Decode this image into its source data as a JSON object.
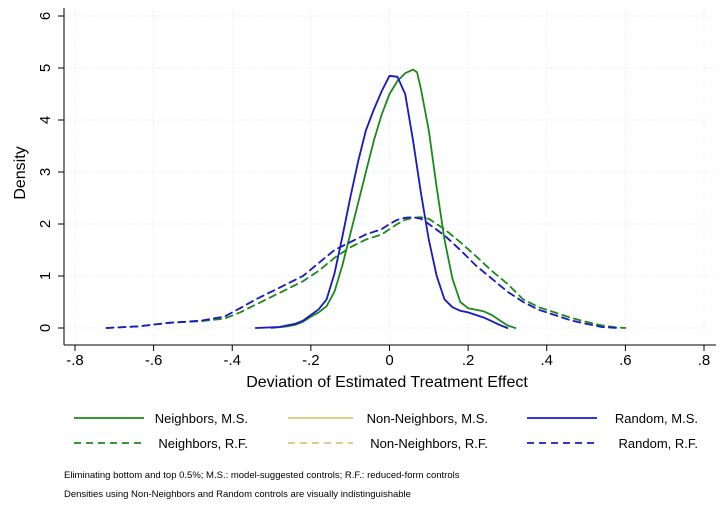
{
  "chart_data": {
    "type": "line",
    "xlabel": "Deviation of Estimated Treatment Effect",
    "ylabel": "Density",
    "xlim": [
      -0.8,
      0.8
    ],
    "ylim": [
      0,
      6
    ],
    "xticks": [
      -0.8,
      -0.6,
      -0.4,
      -0.2,
      0,
      0.2,
      0.4,
      0.6,
      0.8
    ],
    "xtick_labels": [
      "-.8",
      "-.6",
      "-.4",
      "-.2",
      "0",
      ".2",
      ".4",
      ".6",
      ".8"
    ],
    "yticks": [
      0,
      1,
      2,
      3,
      4,
      5,
      6
    ],
    "ytick_labels": [
      "0",
      "1",
      "2",
      "3",
      "4",
      "5",
      "6"
    ],
    "grid": true,
    "legend_position": "bottom",
    "series": [
      {
        "name": "Neighbors, M.S.",
        "color": "#1a8a1a",
        "dash": "solid",
        "x": [
          -0.3,
          -0.26,
          -0.24,
          -0.22,
          -0.2,
          -0.18,
          -0.16,
          -0.14,
          -0.12,
          -0.1,
          -0.08,
          -0.06,
          -0.04,
          -0.02,
          0.0,
          0.02,
          0.04,
          0.06,
          0.07,
          0.08,
          0.1,
          0.12,
          0.14,
          0.16,
          0.18,
          0.2,
          0.22,
          0.24,
          0.26,
          0.28,
          0.3,
          0.32
        ],
        "y": [
          0.0,
          0.03,
          0.06,
          0.12,
          0.22,
          0.3,
          0.42,
          0.7,
          1.2,
          1.8,
          2.4,
          3.0,
          3.6,
          4.1,
          4.5,
          4.75,
          4.9,
          4.97,
          4.92,
          4.6,
          3.8,
          2.7,
          1.7,
          0.95,
          0.5,
          0.38,
          0.35,
          0.32,
          0.25,
          0.15,
          0.05,
          0.0
        ]
      },
      {
        "name": "Non-Neighbors, M.S.",
        "color": "#d8c878",
        "dash": "solid",
        "x": [
          -0.34,
          -0.28,
          -0.24,
          -0.22,
          -0.2,
          -0.18,
          -0.16,
          -0.14,
          -0.12,
          -0.1,
          -0.08,
          -0.06,
          -0.04,
          -0.02,
          0.0,
          0.02,
          0.04,
          0.06,
          0.08,
          0.1,
          0.12,
          0.14,
          0.16,
          0.18,
          0.2,
          0.22,
          0.24,
          0.26,
          0.28,
          0.3
        ],
        "y": [
          0.0,
          0.02,
          0.08,
          0.14,
          0.25,
          0.36,
          0.55,
          1.05,
          1.75,
          2.5,
          3.2,
          3.8,
          4.2,
          4.55,
          4.85,
          4.83,
          4.5,
          3.6,
          2.6,
          1.7,
          1.0,
          0.55,
          0.4,
          0.33,
          0.3,
          0.25,
          0.2,
          0.13,
          0.06,
          0.0
        ]
      },
      {
        "name": "Random, M.S.",
        "color": "#1a1acc",
        "dash": "solid",
        "x": [
          -0.34,
          -0.28,
          -0.24,
          -0.22,
          -0.2,
          -0.18,
          -0.16,
          -0.14,
          -0.12,
          -0.1,
          -0.08,
          -0.06,
          -0.04,
          -0.02,
          0.0,
          0.02,
          0.04,
          0.06,
          0.08,
          0.1,
          0.12,
          0.14,
          0.16,
          0.18,
          0.2,
          0.22,
          0.24,
          0.26,
          0.28,
          0.3
        ],
        "y": [
          0.0,
          0.02,
          0.08,
          0.14,
          0.25,
          0.36,
          0.55,
          1.05,
          1.75,
          2.5,
          3.2,
          3.8,
          4.2,
          4.55,
          4.85,
          4.83,
          4.5,
          3.6,
          2.6,
          1.7,
          1.0,
          0.55,
          0.4,
          0.33,
          0.3,
          0.25,
          0.2,
          0.13,
          0.06,
          0.0
        ]
      },
      {
        "name": "Neighbors, R.F.",
        "color": "#1a8a1a",
        "dash": "dashed",
        "x": [
          -0.72,
          -0.64,
          -0.56,
          -0.48,
          -0.42,
          -0.38,
          -0.34,
          -0.3,
          -0.26,
          -0.22,
          -0.18,
          -0.14,
          -0.1,
          -0.06,
          -0.02,
          0.0,
          0.02,
          0.04,
          0.06,
          0.08,
          0.1,
          0.14,
          0.18,
          0.22,
          0.26,
          0.3,
          0.34,
          0.38,
          0.42,
          0.46,
          0.5,
          0.54,
          0.58,
          0.6
        ],
        "y": [
          0.0,
          0.03,
          0.1,
          0.13,
          0.18,
          0.3,
          0.45,
          0.6,
          0.75,
          0.9,
          1.1,
          1.35,
          1.55,
          1.7,
          1.8,
          1.9,
          2.0,
          2.08,
          2.12,
          2.13,
          2.1,
          1.9,
          1.65,
          1.38,
          1.1,
          0.85,
          0.55,
          0.4,
          0.3,
          0.2,
          0.12,
          0.05,
          0.01,
          0.0
        ]
      },
      {
        "name": "Non-Neighbors, R.F.",
        "color": "#d8c878",
        "dash": "dashed",
        "x": [
          -0.72,
          -0.64,
          -0.56,
          -0.48,
          -0.42,
          -0.38,
          -0.34,
          -0.3,
          -0.26,
          -0.22,
          -0.18,
          -0.14,
          -0.1,
          -0.06,
          -0.02,
          0.0,
          0.02,
          0.04,
          0.06,
          0.08,
          0.1,
          0.14,
          0.18,
          0.22,
          0.26,
          0.3,
          0.34,
          0.38,
          0.42,
          0.46,
          0.5,
          0.54,
          0.58
        ],
        "y": [
          0.0,
          0.03,
          0.1,
          0.14,
          0.22,
          0.38,
          0.55,
          0.7,
          0.85,
          1.0,
          1.25,
          1.5,
          1.65,
          1.8,
          1.9,
          2.0,
          2.08,
          2.12,
          2.13,
          2.1,
          2.0,
          1.78,
          1.5,
          1.2,
          0.95,
          0.7,
          0.5,
          0.35,
          0.25,
          0.15,
          0.08,
          0.02,
          0.0
        ]
      },
      {
        "name": "Random, R.F.",
        "color": "#1a1acc",
        "dash": "dashed",
        "x": [
          -0.72,
          -0.64,
          -0.56,
          -0.48,
          -0.42,
          -0.38,
          -0.34,
          -0.3,
          -0.26,
          -0.22,
          -0.18,
          -0.14,
          -0.1,
          -0.06,
          -0.02,
          0.0,
          0.02,
          0.04,
          0.06,
          0.08,
          0.1,
          0.14,
          0.18,
          0.22,
          0.26,
          0.3,
          0.34,
          0.38,
          0.42,
          0.46,
          0.5,
          0.54,
          0.58
        ],
        "y": [
          0.0,
          0.03,
          0.1,
          0.14,
          0.22,
          0.38,
          0.55,
          0.7,
          0.85,
          1.0,
          1.25,
          1.5,
          1.65,
          1.8,
          1.9,
          2.0,
          2.08,
          2.12,
          2.13,
          2.1,
          2.0,
          1.78,
          1.5,
          1.2,
          0.95,
          0.7,
          0.5,
          0.35,
          0.25,
          0.15,
          0.08,
          0.02,
          0.0
        ]
      }
    ]
  },
  "notes": {
    "line1": "Eliminating bottom and top 0.5%; M.S.: model-suggested controls; R.F.: reduced-form controls",
    "line2": "Densities using Non-Neighbors and Random controls are visually indistinguishable"
  }
}
